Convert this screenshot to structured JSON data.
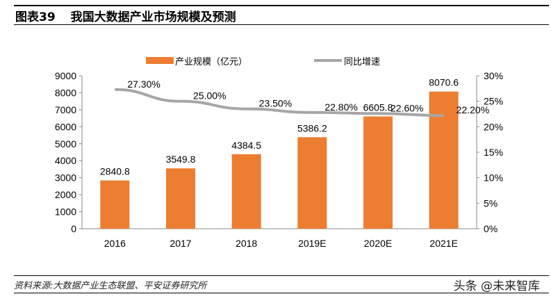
{
  "header": {
    "figure_no": "图表39",
    "title": "我国大数据产业市场规模及预测"
  },
  "footer": {
    "source": "资料来源:大数据产业生态联盟、平安证券研究所",
    "watermark": "头条 @未来智库"
  },
  "colors": {
    "bar": "#ED7D31",
    "line": "#A6A6A6"
  },
  "chart_data": {
    "type": "bar+line",
    "categories": [
      "2016",
      "2017",
      "2018",
      "2019E",
      "2020E",
      "2021E"
    ],
    "series": [
      {
        "name": "产业规模（亿元）",
        "type": "bar",
        "axis": "left",
        "values": [
          2840.8,
          3549.8,
          4384.5,
          5386.2,
          6605.8,
          8070.6
        ],
        "labels": [
          "2840.8",
          "3549.8",
          "4384.5",
          "5386.2",
          "6605.8",
          "8070.6"
        ]
      },
      {
        "name": "同比增速",
        "type": "line",
        "axis": "right",
        "values": [
          27.3,
          25.0,
          23.5,
          22.8,
          22.6,
          22.2
        ],
        "labels": [
          "27.30%",
          "25.00%",
          "23.50%",
          "22.80%",
          "22.60%",
          "22.20%"
        ]
      }
    ],
    "left_axis": {
      "ylim": [
        0,
        9000
      ],
      "ticks": [
        "0",
        "1000",
        "2000",
        "3000",
        "4000",
        "5000",
        "6000",
        "7000",
        "8000",
        "9000"
      ]
    },
    "right_axis": {
      "ylim": [
        0,
        30
      ],
      "ticks": [
        "0%",
        "5%",
        "10%",
        "15%",
        "20%",
        "25%",
        "30%"
      ]
    },
    "legend": "top",
    "grid": false
  }
}
